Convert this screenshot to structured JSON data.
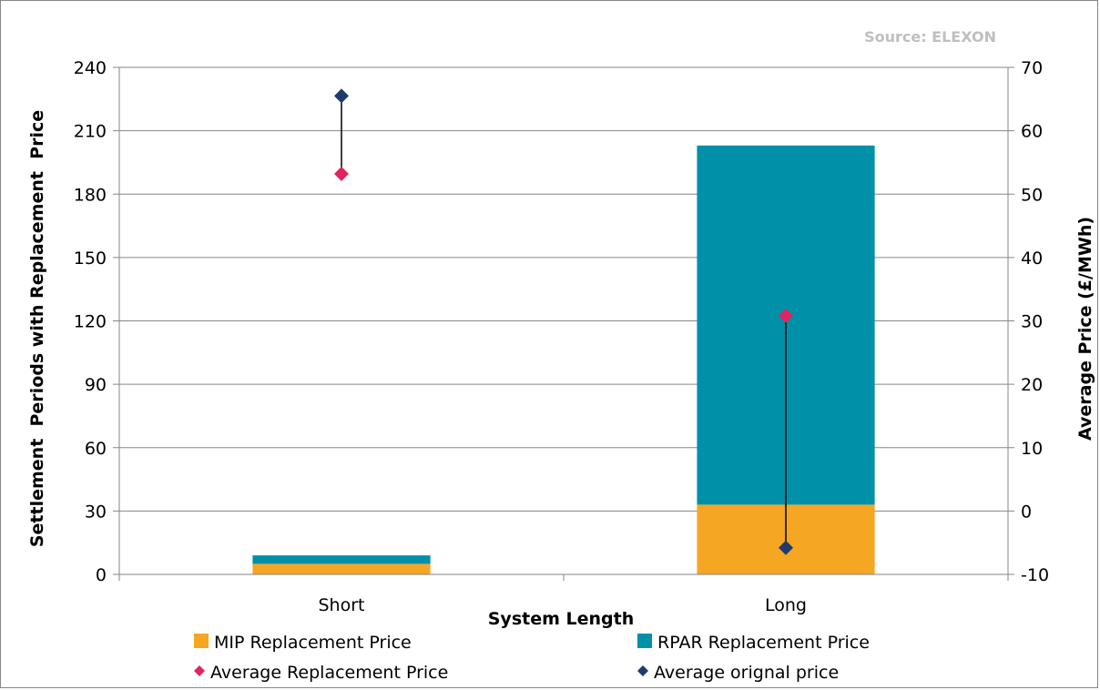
{
  "chart_data": {
    "type": "bar",
    "stacked": true,
    "source_label": "Source: ELEXON",
    "xlabel": "System Length",
    "ylabel": "Settlement  Periods with Replacement  Price",
    "y2label": "Average Price (£/MWh)",
    "categories": [
      "Short",
      "Long"
    ],
    "ylim": [
      0,
      240
    ],
    "yticks": [
      0,
      30,
      60,
      90,
      120,
      150,
      180,
      210,
      240
    ],
    "y2lim": [
      -10,
      70
    ],
    "y2ticks": [
      -10,
      0,
      10,
      20,
      30,
      40,
      50,
      60,
      70
    ],
    "grid": true,
    "legend_position": "bottom",
    "series": [
      {
        "name": "MIP Replacement Price",
        "kind": "bar",
        "axis": "left",
        "color": "#f5a623",
        "values": [
          5,
          33
        ]
      },
      {
        "name": "RPAR Replacement Price",
        "kind": "bar",
        "axis": "left",
        "color": "#0090a8",
        "values": [
          4,
          170
        ]
      },
      {
        "name": "Average Replacement Price",
        "kind": "marker",
        "marker": "diamond",
        "axis": "right",
        "color": "#e0245e",
        "values": [
          53.2,
          30.8
        ]
      },
      {
        "name": "Average orignal price",
        "kind": "marker",
        "marker": "diamond",
        "axis": "right",
        "color": "#1f3a6e",
        "values": [
          65.5,
          -5.8
        ]
      }
    ]
  }
}
